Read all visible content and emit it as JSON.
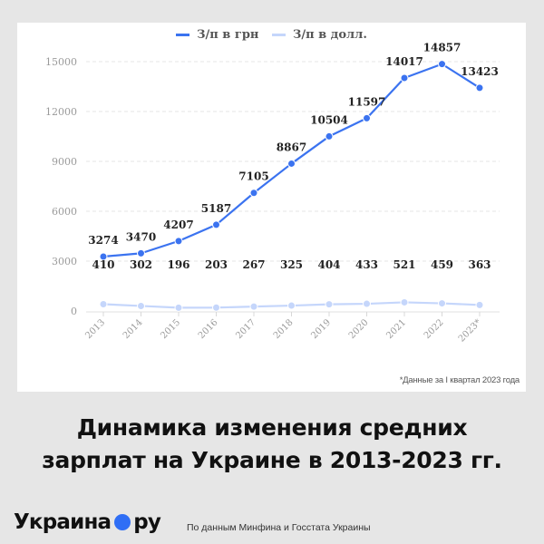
{
  "legend": [
    {
      "label": "З/п в грн",
      "color": "#3b73f0"
    },
    {
      "label": "З/п в долл.",
      "color": "#c5d6fb"
    }
  ],
  "chart_data": {
    "type": "line",
    "title": "Динамика изменения средних зарплат на Украине в 2013-2023 гг.",
    "xlabel": "",
    "ylabel": "",
    "categories": [
      "2013",
      "2014",
      "2015",
      "2016",
      "2017",
      "2018",
      "2019",
      "2020",
      "2021",
      "2022",
      "2023*"
    ],
    "series": [
      {
        "name": "З/п в грн",
        "color": "#3b73f0",
        "values": [
          3274,
          3470,
          4207,
          5187,
          7105,
          8867,
          10504,
          11597,
          14017,
          14857,
          13423
        ]
      },
      {
        "name": "З/п в долл.",
        "color": "#c5d6fb",
        "values": [
          410,
          302,
          196,
          203,
          267,
          325,
          404,
          433,
          521,
          459,
          363
        ]
      }
    ],
    "yticks": [
      0,
      3000,
      6000,
      9000,
      12000,
      15000
    ],
    "ylim": [
      0,
      15000
    ],
    "grid": true,
    "legend_position": "top"
  },
  "footnote": "*Данные за I квартал 2023 года",
  "title_lines": [
    "Динамика изменения средних",
    "зарплат на Украине в 2013-2023 гг."
  ],
  "brand": {
    "left": "Украина",
    "right": "ру",
    "dot_color": "#2f6ef5"
  },
  "source": "По данным Минфина и Госстата Украины"
}
